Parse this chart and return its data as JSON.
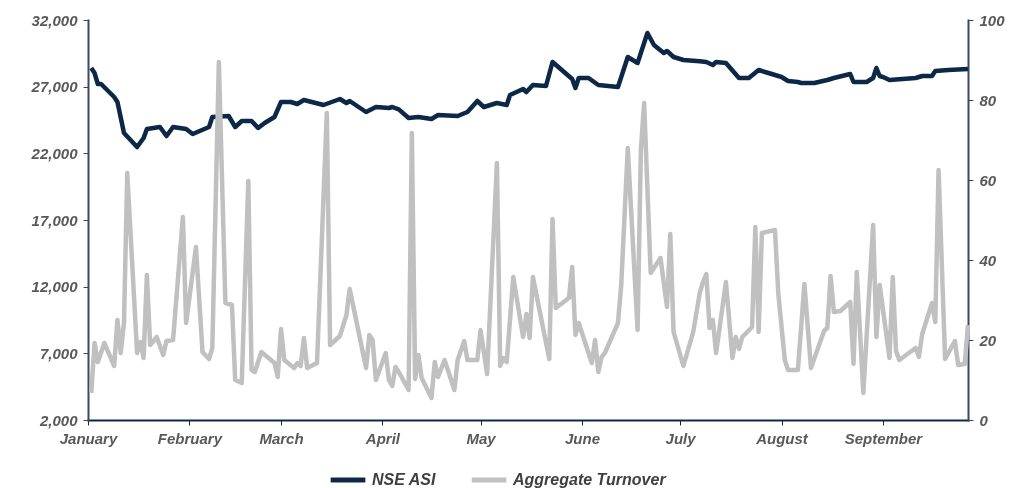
{
  "chart_data": {
    "type": "line",
    "xlim": [
      "--01-01",
      "--09-27"
    ],
    "xticks": [
      {
        "value": "--01-01",
        "label": "January"
      },
      {
        "value": "--02-01",
        "label": "February"
      },
      {
        "value": "--03-01",
        "label": "March"
      },
      {
        "value": "--04-01",
        "label": "April"
      },
      {
        "value": "--05-01",
        "label": "May"
      },
      {
        "value": "--06-01",
        "label": "June"
      },
      {
        "value": "--07-01",
        "label": "July"
      },
      {
        "value": "--08-01",
        "label": "August"
      },
      {
        "value": "--09-01",
        "label": "September"
      }
    ],
    "ylim": [
      2000,
      32000
    ],
    "yticks": [
      {
        "value": 2000,
        "label": "2,000"
      },
      {
        "value": 7000,
        "label": "7,000"
      },
      {
        "value": 12000,
        "label": "12,000"
      },
      {
        "value": 17000,
        "label": "17,000"
      },
      {
        "value": 22000,
        "label": "22,000"
      },
      {
        "value": 27000,
        "label": "27,000"
      },
      {
        "value": 32000,
        "label": "32,000"
      }
    ],
    "y2lim": [
      0,
      100
    ],
    "y2ticks": [
      0,
      20,
      40,
      60,
      80,
      100
    ],
    "legend": "bottom",
    "series": [
      {
        "name": "NSE ASI",
        "color": "#0d2847",
        "x": [
          "--01-02",
          "--01-03",
          "--01-04",
          "--01-05",
          "--01-09",
          "--01-10",
          "--01-12",
          "--01-16",
          "--01-18",
          "--01-19",
          "--01-23",
          "--01-25",
          "--01-27",
          "--01-31",
          "--02-02",
          "--02-07",
          "--02-08",
          "--02-13",
          "--02-15",
          "--02-17",
          "--02-20",
          "--02-22",
          "--02-24",
          "--02-27",
          "--03-01",
          "--03-04",
          "--03-06",
          "--03-08",
          "--03-14",
          "--03-19",
          "--03-21",
          "--03-22",
          "--03-27",
          "--03-30",
          "--04-03",
          "--04-04",
          "--04-06",
          "--04-09",
          "--04-12",
          "--04-16",
          "--04-18",
          "--04-24",
          "--04-27",
          "--04-30",
          "--05-02",
          "--05-06",
          "--05-09",
          "--05-10",
          "--05-14",
          "--05-15",
          "--05-17",
          "--05-21",
          "--05-23",
          "--05-29",
          "--05-30",
          "--05-31",
          "--06-03",
          "--06-06",
          "--06-12",
          "--06-15",
          "--06-18",
          "--06-21",
          "--06-23",
          "--06-26",
          "--06-27",
          "--06-29",
          "--07-02",
          "--07-07",
          "--07-09",
          "--07-11",
          "--07-12",
          "--07-15",
          "--07-19",
          "--07-22",
          "--07-25",
          "--07-28",
          "--08-01",
          "--08-03",
          "--08-06",
          "--08-07",
          "--08-11",
          "--08-15",
          "--08-17",
          "--08-22",
          "--08-23",
          "--08-27",
          "--08-29",
          "--08-30",
          "--08-31",
          "--09-01",
          "--09-03",
          "--09-11",
          "--09-13",
          "--09-16",
          "--09-17",
          "--09-21",
          "--09-27"
        ],
        "values": [
          28400,
          28025,
          27200,
          27200,
          26225,
          25850,
          23525,
          22475,
          23150,
          23825,
          23975,
          23300,
          23975,
          23825,
          23450,
          23975,
          24725,
          24800,
          23975,
          24425,
          24425,
          23900,
          24275,
          24725,
          25850,
          25850,
          25700,
          26000,
          25625,
          26075,
          25775,
          25925,
          25100,
          25475,
          25400,
          25475,
          25300,
          24650,
          24725,
          24575,
          24875,
          24800,
          25100,
          25925,
          25475,
          25775,
          25625,
          26375,
          26825,
          26600,
          27125,
          27050,
          28850,
          27575,
          26900,
          27650,
          27650,
          27125,
          26975,
          29225,
          28775,
          31025,
          30125,
          29525,
          29675,
          29225,
          29000,
          28900,
          28850,
          28625,
          28850,
          28775,
          27650,
          27650,
          28250,
          28025,
          27725,
          27425,
          27350,
          27275,
          27275,
          27500,
          27650,
          27950,
          27350,
          27350,
          27650,
          28400,
          27800,
          27725,
          27500,
          27650,
          27800,
          27800,
          28175,
          28250,
          28325
        ]
      },
      {
        "name": "Aggregate Turnover",
        "color": "#c0c0c0",
        "axis": "y2",
        "x": [
          "--01-02",
          "--01-03",
          "--01-04",
          "--01-06",
          "--01-09",
          "--01-10",
          "--01-11",
          "--01-12",
          "--01-13",
          "--01-16",
          "--01-17",
          "--01-18",
          "--01-19",
          "--01-20",
          "--01-22",
          "--01-24",
          "--01-25",
          "--01-27",
          "--01-30",
          "--01-31",
          "--02-03",
          "--02-05",
          "--02-07",
          "--02-08",
          "--02-10",
          "--02-12",
          "--02-14",
          "--02-15",
          "--02-17",
          "--02-19",
          "--02-20",
          "--02-21",
          "--02-23",
          "--02-27",
          "--02-28",
          "--03-01",
          "--03-02",
          "--03-05",
          "--03-06",
          "--03-07",
          "--03-08",
          "--03-09",
          "--03-12",
          "--03-15",
          "--03-16",
          "--03-19",
          "--03-21",
          "--03-22",
          "--03-27",
          "--03-28",
          "--03-29",
          "--03-30",
          "--04-02",
          "--04-03",
          "--04-04",
          "--04-05",
          "--04-06",
          "--04-09",
          "--04-10",
          "--04-11",
          "--04-12",
          "--04-13",
          "--04-16",
          "--04-17",
          "--04-18",
          "--04-20",
          "--04-23",
          "--04-24",
          "--04-26",
          "--04-27",
          "--04-30",
          "--05-01",
          "--05-03",
          "--05-06",
          "--05-07",
          "--05-08",
          "--05-09",
          "--05-11",
          "--05-14",
          "--05-15",
          "--05-16",
          "--05-17",
          "--05-22",
          "--05-23",
          "--05-24",
          "--05-28",
          "--05-29",
          "--05-30",
          "--05-31",
          "--06-04",
          "--06-05",
          "--06-06",
          "--06-07",
          "--06-08",
          "--06-12",
          "--06-13",
          "--06-15",
          "--06-18",
          "--06-19",
          "--06-20",
          "--06-22",
          "--06-25",
          "--06-27",
          "--06-28",
          "--06-29",
          "--07-02",
          "--07-05",
          "--07-07",
          "--07-08",
          "--07-09",
          "--07-10",
          "--07-11",
          "--07-12",
          "--07-15",
          "--07-17",
          "--07-18",
          "--07-19",
          "--07-20",
          "--07-23",
          "--07-24",
          "--07-25",
          "--07-26",
          "--07-30",
          "--07-31",
          "--08-02",
          "--08-03",
          "--08-06",
          "--08-08",
          "--08-10",
          "--08-14",
          "--08-15",
          "--08-16",
          "--08-17",
          "--08-19",
          "--08-22",
          "--08-23",
          "--08-24",
          "--08-26",
          "--08-29",
          "--08-30",
          "--08-31",
          "--09-03",
          "--09-04",
          "--09-05",
          "--09-06",
          "--09-11",
          "--09-12",
          "--09-13",
          "--09-16",
          "--09-17",
          "--09-18",
          "--09-20",
          "--09-23",
          "--09-24",
          "--09-26",
          "--09-27"
        ],
        "values": [
          6.75,
          19.25,
          14.5,
          19.25,
          13.5,
          25,
          16.75,
          24.25,
          61.75,
          16.75,
          19.5,
          15.5,
          36.25,
          18.75,
          20.75,
          16.25,
          19.75,
          20,
          50.75,
          24.25,
          43.25,
          17,
          15.25,
          18,
          89.5,
          29.25,
          28.75,
          10,
          9.25,
          59.75,
          12.5,
          12,
          17,
          14.25,
          10.75,
          22.75,
          15,
          13,
          14.25,
          13.5,
          20.5,
          13,
          14.25,
          76.75,
          18.75,
          21,
          26.25,
          32.75,
          13,
          21.25,
          20,
          10,
          16.75,
          10,
          8.5,
          13.25,
          12,
          7.5,
          71.75,
          10.25,
          16.25,
          10.5,
          5.5,
          14.5,
          10.75,
          15,
          7.5,
          15,
          19.75,
          15,
          15,
          22.5,
          11.5,
          64.25,
          13.5,
          15.5,
          14.5,
          35.75,
          20.75,
          26.5,
          20.5,
          35.75,
          15.25,
          50.25,
          28,
          30.5,
          38.25,
          21.25,
          24.25,
          14.25,
          20,
          12,
          15.75,
          16.75,
          24.25,
          33.75,
          68,
          22.5,
          67.5,
          79.25,
          36.75,
          40.5,
          28.25,
          46.5,
          22,
          13.5,
          22,
          31.75,
          34.5,
          36.5,
          23,
          25,
          16.75,
          34.5,
          15.5,
          20.75,
          17.75,
          20.75,
          23.25,
          48.25,
          22,
          46.75,
          47.5,
          31.75,
          15,
          12.5,
          12.5,
          34,
          13,
          22.25,
          23,
          36,
          27,
          27.25,
          29.5,
          14,
          37,
          6.75,
          48.75,
          20.75,
          33.75,
          15.5,
          35.75,
          17.25,
          15,
          18,
          15.75,
          21.5,
          29.25,
          24.5,
          62.5,
          15.25,
          19.75,
          13.75,
          14,
          23.75
        ]
      }
    ]
  }
}
